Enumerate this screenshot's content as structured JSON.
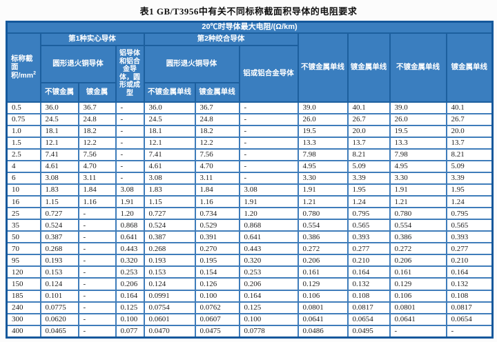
{
  "title": "表1  GB/T3956中有关不同标称截面积导体的电阻要求",
  "header": {
    "top": "20℃时导体最大电阻/(Ω/km)",
    "area_line1": "标称截",
    "area_line2": "面积/mm",
    "area_sup": "2",
    "group1_label": "第1种实心导体",
    "group2_label": "第2种绞合导体",
    "g1_copper": "圆形退火铜导体",
    "g1_sub1": "不镀金属",
    "g1_sub2": "镀金属",
    "g1_alu": "铝导体和铝合金导体，圆形或成型",
    "g2_copper": "圆形退火铜导体",
    "g2_sub1": "不镀金属单线",
    "g2_sub2": "镀金属单线",
    "g2_alu": "铝或铝合金导体",
    "right_col1": "不镀金属单线",
    "right_col2": "镀金属单线",
    "right_col3": "不镀金属单线",
    "right_col4": "镀金属单线"
  },
  "rows": [
    [
      "0.5",
      "36.0",
      "36.7",
      "-",
      "36.0",
      "36.7",
      "-",
      "39.0",
      "40.1",
      "39.0",
      "40.1"
    ],
    [
      "0.75",
      "24.5",
      "24.8",
      "-",
      "24.5",
      "24.8",
      "-",
      "26.0",
      "26.7",
      "26.0",
      "26.7"
    ],
    [
      "1.0",
      "18.1",
      "18.2",
      "-",
      "18.1",
      "18.2",
      "-",
      "19.5",
      "20.0",
      "19.5",
      "20.0"
    ],
    [
      "1.5",
      "12.1",
      "12.2",
      "-",
      "12.1",
      "12.2",
      "-",
      "13.3",
      "13.7",
      "13.3",
      "13.7"
    ],
    [
      "2.5",
      "7.41",
      "7.56",
      "-",
      "7.41",
      "7.56",
      "-",
      "7.98",
      "8.21",
      "7.98",
      "8.21"
    ],
    [
      "4",
      "4.61",
      "4.70",
      "-",
      "4.61",
      "4.70",
      "-",
      "4.95",
      "5.09",
      "4.95",
      "5.09"
    ],
    [
      "6",
      "3.08",
      "3.11",
      "-",
      "3.08",
      "3.11",
      "-",
      "3.30",
      "3.39",
      "3.30",
      "3.39"
    ],
    [
      "10",
      "1.83",
      "1.84",
      "3.08",
      "1.83",
      "1.84",
      "3.08",
      "1.91",
      "1.95",
      "1.91",
      "1.95"
    ],
    [
      "16",
      "1.15",
      "1.16",
      "1.91",
      "1.15",
      "1.16",
      "1.91",
      "1.21",
      "1.24",
      "1.21",
      "1.24"
    ],
    [
      "25",
      "0.727",
      "-",
      "1.20",
      "0.727",
      "0.734",
      "1.20",
      "0.780",
      "0.795",
      "0.780",
      "0.795"
    ],
    [
      "35",
      "0.524",
      "-",
      "0.868",
      "0.524",
      "0.529",
      "0.868",
      "0.554",
      "0.565",
      "0.554",
      "0.565"
    ],
    [
      "50",
      "0.387",
      "-",
      "0.641",
      "0.387",
      "0.391",
      "0.641",
      "0.386",
      "0.393",
      "0.386",
      "0.393"
    ],
    [
      "70",
      "0.268",
      "-",
      "0.443",
      "0.268",
      "0.270",
      "0.443",
      "0.272",
      "0.277",
      "0.272",
      "0.277"
    ],
    [
      "95",
      "0.193",
      "-",
      "0.320",
      "0.193",
      "0.195",
      "0.320",
      "0.206",
      "0.210",
      "0.206",
      "0.210"
    ],
    [
      "120",
      "0.153",
      "-",
      "0.253",
      "0.153",
      "0.154",
      "0.253",
      "0.161",
      "0.164",
      "0.161",
      "0.164"
    ],
    [
      "150",
      "0.124",
      "-",
      "0.206",
      "0.124",
      "0.126",
      "0.206",
      "0.129",
      "0.132",
      "0.129",
      "0.132"
    ],
    [
      "185",
      "0.101",
      "-",
      "0.164",
      "0.0991",
      "0.100",
      "0.164",
      "0.106",
      "0.108",
      "0.106",
      "0.108"
    ],
    [
      "240",
      "0.0775",
      "-",
      "0.125",
      "0.0754",
      "0.0762",
      "0.125",
      "0.0801",
      "0.0817",
      "0.0801",
      "0.0817"
    ],
    [
      "300",
      "0.0620",
      "-",
      "0.100",
      "0.0601",
      "0.0607",
      "0.100",
      "0.0641",
      "0.0654",
      "0.0641",
      "0.0654"
    ],
    [
      "400",
      "0.0465",
      "-",
      "0.077",
      "0.0470",
      "0.0475",
      "0.0778",
      "0.0486",
      "0.0495",
      "-",
      "-"
    ]
  ]
}
